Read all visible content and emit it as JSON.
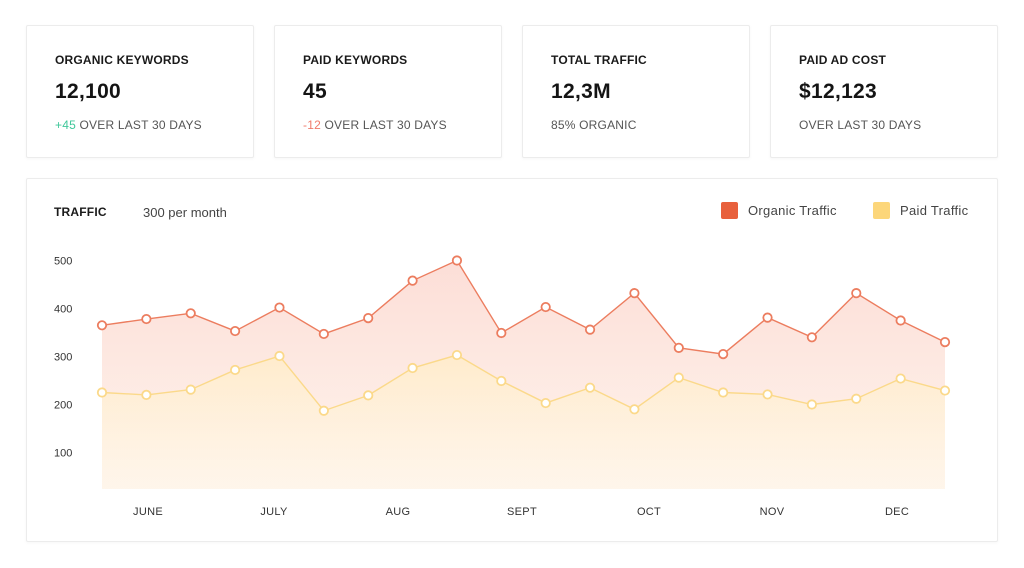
{
  "cards": [
    {
      "title": "ORGANIC KEYWORDS",
      "value": "12,100",
      "delta": "+45",
      "delta_type": "pos",
      "sub": "OVER LAST 30 DAYS"
    },
    {
      "title": "PAID KEYWORDS",
      "value": "45",
      "delta": "-12",
      "delta_type": "neg",
      "sub": "OVER LAST 30 DAYS"
    },
    {
      "title": "TOTAL TRAFFIC",
      "value": "12,3M",
      "delta": "",
      "delta_type": "",
      "sub": "85% ORGANIC"
    },
    {
      "title": "PAID AD COST",
      "value": "$12,123",
      "delta": "",
      "delta_type": "",
      "sub": "OVER LAST 30 DAYS"
    }
  ],
  "chart": {
    "title": "TRAFFIC",
    "subtitle": "300 per month",
    "legend": [
      {
        "label": "Organic Traffic",
        "color": "#e8603c"
      },
      {
        "label": "Paid Traffic",
        "color": "#fcd67a"
      }
    ]
  },
  "chart_data": {
    "type": "line",
    "title": "TRAFFIC",
    "subtitle": "300 per month",
    "yticks": [
      100,
      200,
      300,
      400,
      500
    ],
    "ylim": [
      20,
      520
    ],
    "month_labels": [
      "JUNE",
      "JULY",
      "AUG",
      "SEPT",
      "OCT",
      "NOV",
      "DEC"
    ],
    "series": [
      {
        "name": "Organic Traffic",
        "color": "#ec7d5f",
        "fill": "#fde1db",
        "values": [
          365,
          378,
          390,
          353,
          402,
          347,
          380,
          458,
          500,
          349,
          403,
          356,
          432,
          318,
          305,
          381,
          340,
          432,
          375,
          330
        ]
      },
      {
        "name": "Paid Traffic",
        "color": "#fbd98a",
        "fill": "#fff2d7",
        "values": [
          225,
          220,
          231,
          272,
          301,
          187,
          219,
          276,
          303,
          249,
          203,
          235,
          190,
          256,
          225,
          221,
          200,
          212,
          254,
          229
        ]
      }
    ],
    "grid": false,
    "legend_position": "top-right"
  }
}
